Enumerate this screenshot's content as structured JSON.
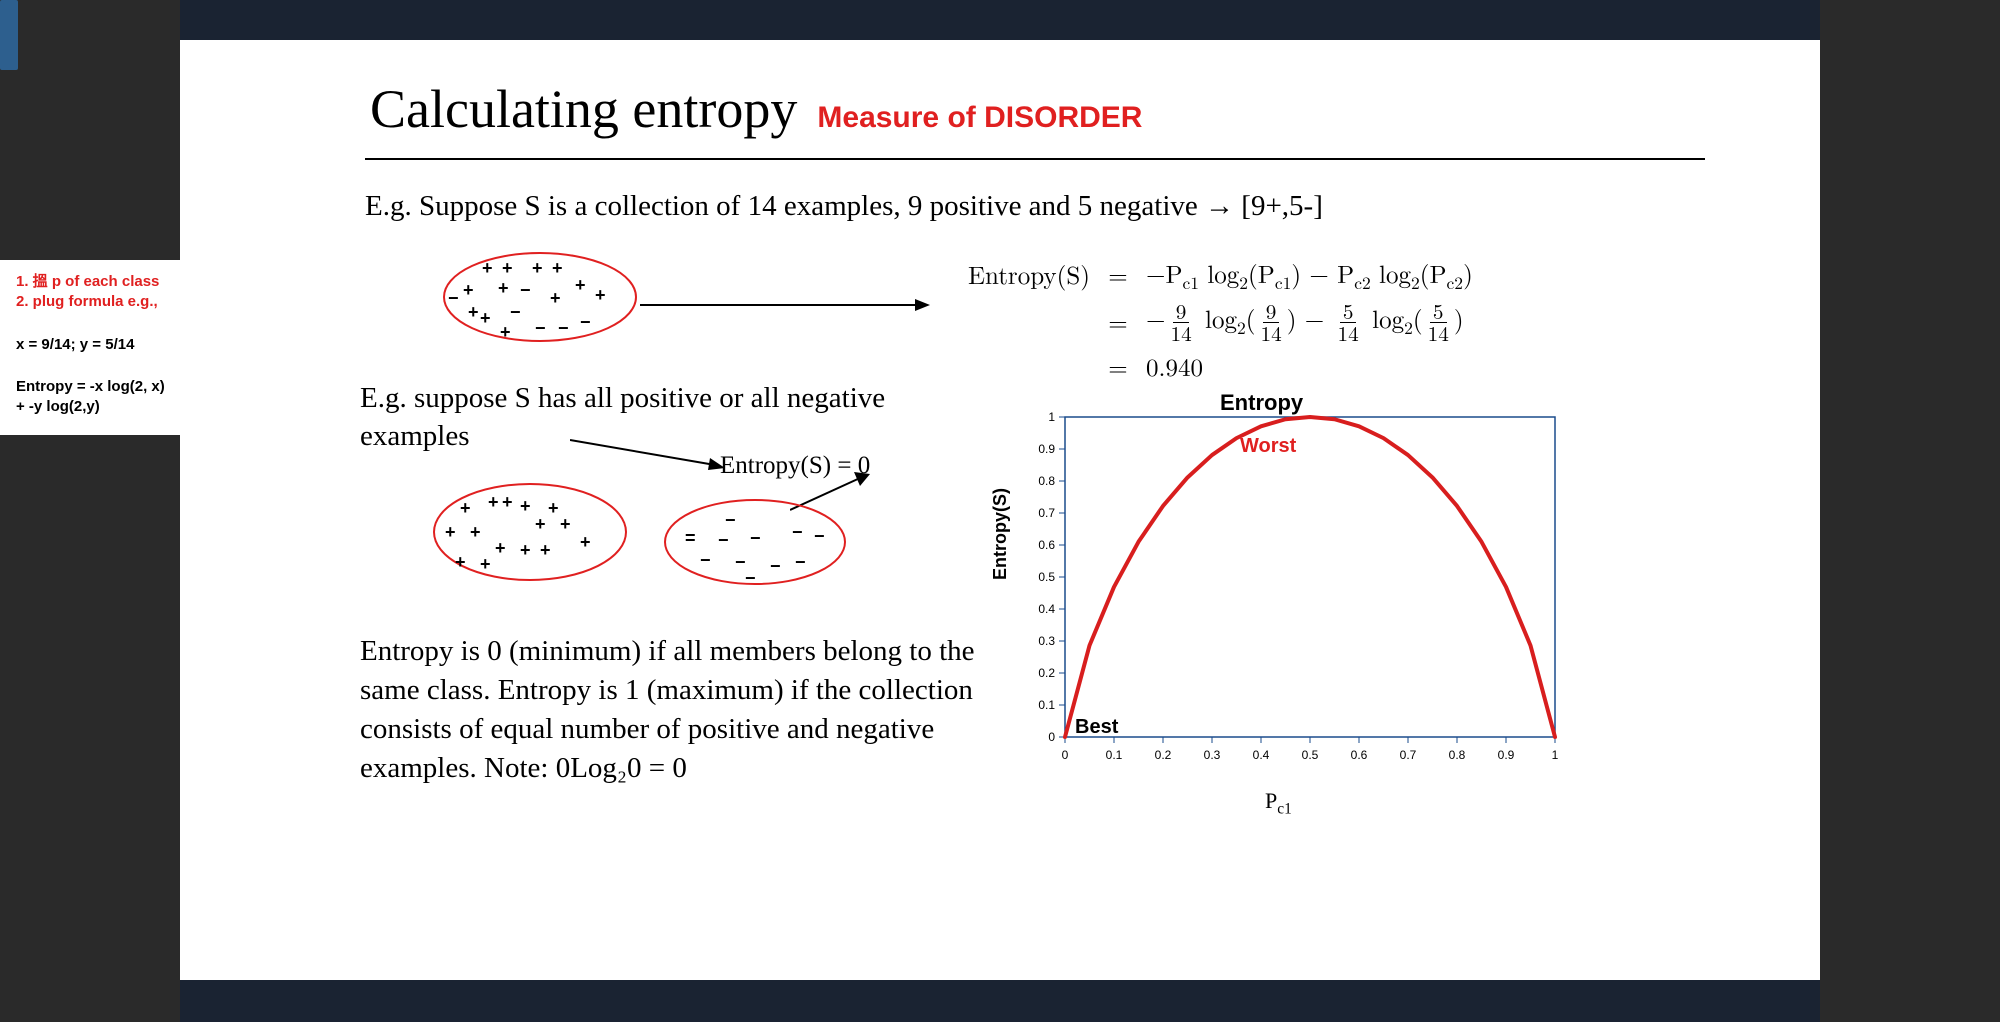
{
  "title": {
    "main": "Calculating entropy",
    "sub": "Measure of DISORDER"
  },
  "example_line": "E.g. Suppose S is a collection of 14 examples, 9 positive and 5 negative → [9+,5-]",
  "sidebar": {
    "step1": "1. 搵 p of each class",
    "step2": "2. plug formula e.g.,",
    "vars": "x = 9/14; y = 5/14",
    "formula": "Entropy = -x log(2, x) + -y log(2,y)"
  },
  "formula": {
    "lhs": "Entropy(S)",
    "line1_rhs": "−P_{c1} log₂(P_{c1}) − P_{c2} log₂(P_{c2})",
    "fractions": {
      "p1_num": "9",
      "p1_den": "14",
      "p2_num": "5",
      "p2_den": "14"
    },
    "result": "0.940"
  },
  "eg2_text": "E.g. suppose S has all positive or all negative examples",
  "entropy0_label": "Entropy(S) = 0",
  "explain": "Entropy is 0 (minimum) if all members belong to the same class. Entropy is 1 (maximum) if the collection consists of equal number of positive and negative examples. Note: 0Log₂0 = 0",
  "ellipses": {
    "mixed": {
      "stroke": "#e02020",
      "stroke_width": 2
    },
    "pos": {
      "stroke": "#e02020",
      "stroke_width": 2
    },
    "neg": {
      "stroke": "#e02020",
      "stroke_width": 2
    }
  },
  "symbols": {
    "mixed": [
      "+",
      "+",
      "+",
      "+",
      "+",
      "+",
      "−",
      "+",
      "+",
      "+",
      "+",
      "−",
      "−",
      "+",
      "−",
      "−"
    ],
    "pos": [
      "+",
      "+",
      "+",
      "+",
      "+",
      "+",
      "+",
      "+",
      "+",
      "+",
      "+",
      "+",
      "+",
      "+"
    ],
    "neg": [
      "−",
      "−",
      "−",
      "−",
      "−",
      "−",
      "−",
      "−",
      "−",
      "−"
    ]
  },
  "chart": {
    "type": "line",
    "title": "Entropy",
    "xlabel": "P_{c1}",
    "ylabel": "Entropy(S)",
    "worst_label": "Worst",
    "best_label": "Best",
    "xlim": [
      0,
      1
    ],
    "ylim": [
      0,
      1
    ],
    "xticks": [
      0,
      0.1,
      0.2,
      0.3,
      0.4,
      0.5,
      0.6,
      0.7,
      0.8,
      0.9,
      1
    ],
    "yticks": [
      0,
      0.1,
      0.2,
      0.3,
      0.4,
      0.5,
      0.6,
      0.7,
      0.8,
      0.9,
      1
    ],
    "curve_color": "#d81e1e",
    "curve_width": 4,
    "frame_color": "#1a4b8c",
    "tick_font_size": 12,
    "background": "#ffffff",
    "points_x": [
      0,
      0.05,
      0.1,
      0.15,
      0.2,
      0.25,
      0.3,
      0.35,
      0.4,
      0.45,
      0.5,
      0.55,
      0.6,
      0.65,
      0.7,
      0.75,
      0.8,
      0.85,
      0.9,
      0.95,
      1.0
    ],
    "points_y": [
      0,
      0.286,
      0.469,
      0.61,
      0.722,
      0.811,
      0.881,
      0.934,
      0.971,
      0.993,
      1.0,
      0.993,
      0.971,
      0.934,
      0.881,
      0.811,
      0.722,
      0.61,
      0.469,
      0.286,
      0
    ]
  },
  "colors": {
    "red": "#e02020",
    "black": "#000000",
    "bg_dark": "#2a2a2a",
    "bg_outer": "#1a2332",
    "blue_frame": "#1a4b8c"
  }
}
